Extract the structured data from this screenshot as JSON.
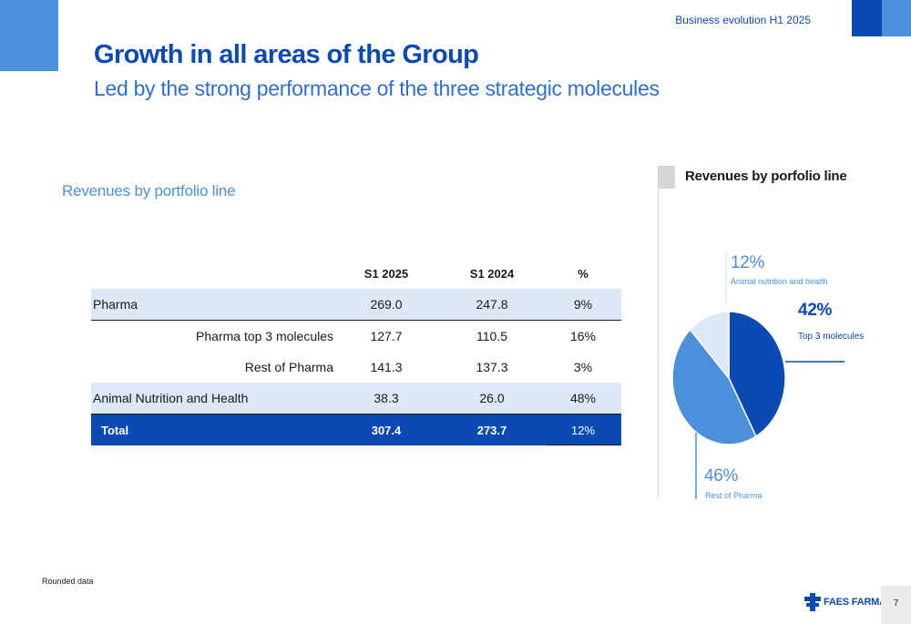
{
  "header": {
    "tag": "Business evolution H1 2025"
  },
  "title": "Growth in all areas of the Group",
  "subtitle": "Led by the strong performance of the three strategic molecules",
  "section_label": "Revenues by portfolio line",
  "table": {
    "headers": [
      "",
      "S1 2025",
      "S1 2024",
      "%"
    ],
    "rows": [
      {
        "label": "Pharma",
        "s1_2025": "269.0",
        "s1_2024": "247.8",
        "pct": "9%"
      },
      {
        "label": "Pharma top 3 molecules",
        "s1_2025": "127.7",
        "s1_2024": "110.5",
        "pct": "16%"
      },
      {
        "label": "Rest of Pharma",
        "s1_2025": "141.3",
        "s1_2024": "137.3",
        "pct": "3%"
      },
      {
        "label": "Animal Nutrition and Health",
        "s1_2025": "38.3",
        "s1_2024": "26.0",
        "pct": "48%"
      },
      {
        "label": "Total",
        "s1_2025": "307.4",
        "s1_2024": "273.7",
        "pct": "12%"
      }
    ]
  },
  "chart_data": {
    "type": "pie",
    "title": "Revenues by porfolio line",
    "slices": [
      {
        "label": "Top 3 molecules",
        "value": 42,
        "display": "42%",
        "color": "#0b49b3"
      },
      {
        "label": "Rest of Pharma",
        "value": 46,
        "display": "46%",
        "color": "#4c8fda"
      },
      {
        "label": "Animal nutrition and health",
        "value": 12,
        "display": "12%",
        "color": "#dde8f6"
      }
    ]
  },
  "footnote": "Rounded data",
  "footer": {
    "logo_text": "FAES FARMA",
    "page_number": "7"
  },
  "colors": {
    "brand_dark": "#0b49b3",
    "brand_mid": "#4c8fda",
    "brand_light": "#dde8f6"
  }
}
